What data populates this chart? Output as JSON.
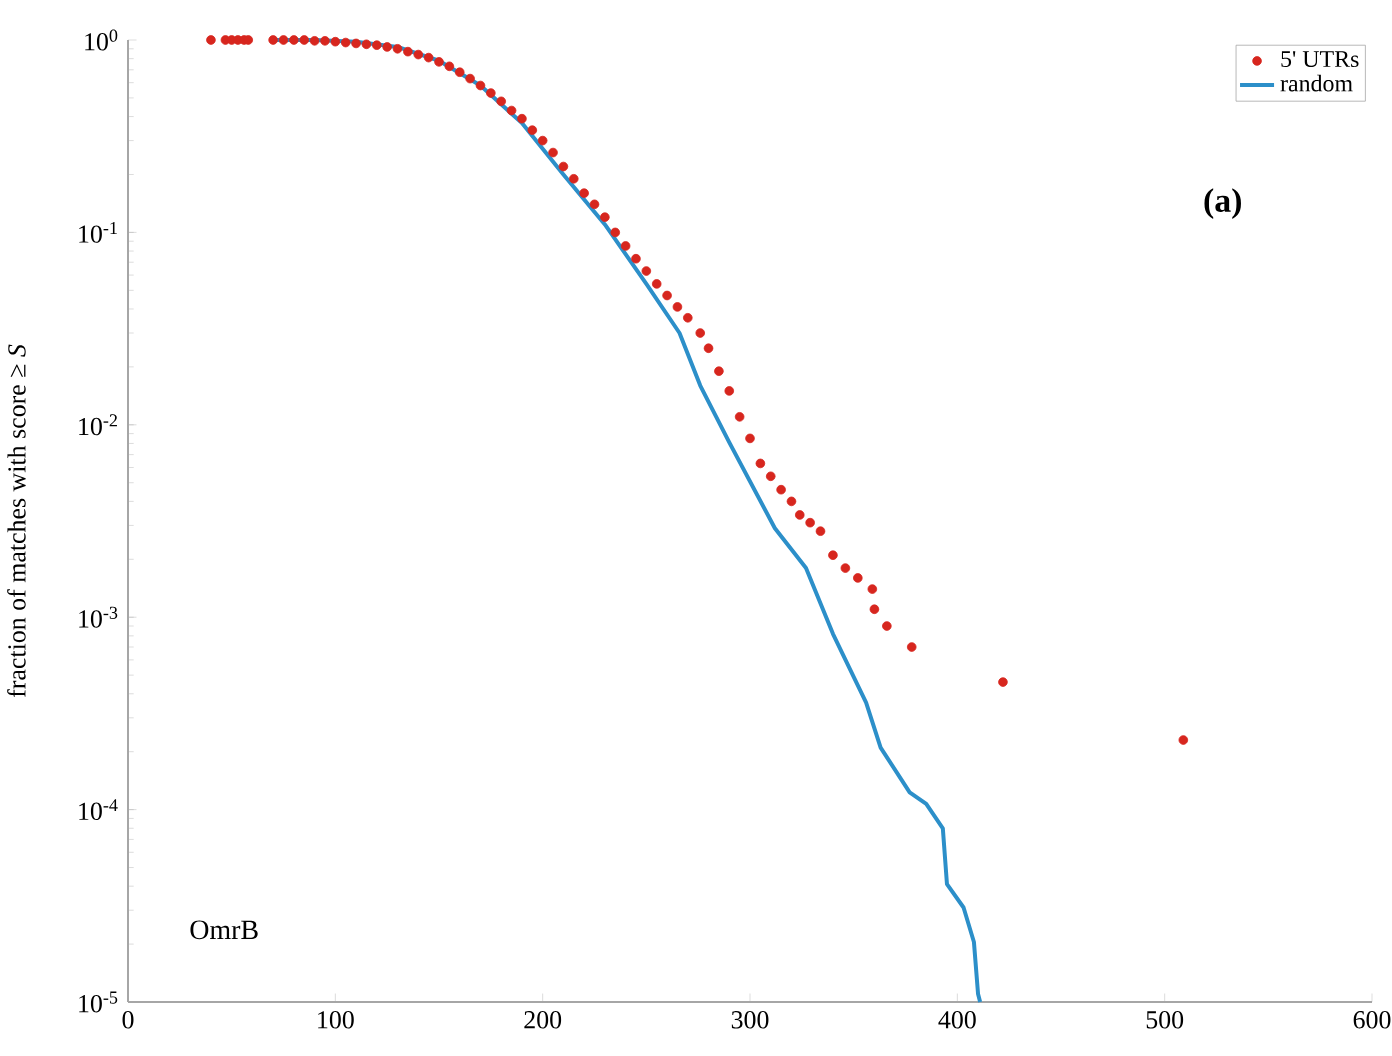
{
  "chart_data": {
    "type": "scatter",
    "ylabel": "fraction of matches with score ≥ *S*",
    "log": "y",
    "legend": "top right",
    "xlim": [
      0,
      600
    ],
    "ylim": [
      1e-05,
      1
    ],
    "xticks": [
      0,
      100,
      200,
      300,
      400,
      500,
      600
    ],
    "yticks": [
      {
        "value": 1e-05,
        "label": "10$^{-5}$"
      },
      {
        "value": 0.0001,
        "label": "10$^{-4}$"
      },
      {
        "value": 0.001,
        "label": "10$^{-3}$"
      },
      {
        "value": 0.01,
        "label": "10$^{-2}$"
      },
      {
        "value": 0.1,
        "label": "10$^{-1}$"
      },
      {
        "value": 1,
        "label": "10$^{0}$"
      }
    ],
    "annotations": [
      "(a)",
      "OmrB"
    ],
    "series": [
      {
        "name": "5' UTRs",
        "marker": "circle",
        "color": "#d7261e",
        "x": [
          40,
          47,
          50,
          53,
          56,
          58,
          70,
          75,
          80,
          85,
          90,
          95,
          100,
          105,
          110,
          115,
          120,
          125,
          130,
          135,
          140,
          145,
          150,
          155,
          160,
          165,
          170,
          175,
          180,
          185,
          190,
          195,
          200,
          205,
          210,
          215,
          220,
          225,
          230,
          235,
          240,
          245,
          250,
          255,
          260,
          265,
          270,
          276,
          280,
          285,
          290,
          295,
          300,
          305,
          310,
          315,
          320,
          324,
          329,
          334,
          340,
          346,
          352,
          359,
          360,
          366,
          378,
          422,
          509
        ],
        "values": [
          1,
          1,
          1,
          1,
          1,
          1,
          1,
          1,
          1,
          1,
          0.99,
          0.99,
          0.98,
          0.97,
          0.96,
          0.95,
          0.94,
          0.92,
          0.9,
          0.87,
          0.84,
          0.81,
          0.77,
          0.73,
          0.68,
          0.63,
          0.58,
          0.53,
          0.48,
          0.43,
          0.39,
          0.34,
          0.3,
          0.26,
          0.22,
          0.19,
          0.16,
          0.14,
          0.12,
          0.1,
          0.085,
          0.073,
          0.063,
          0.054,
          0.047,
          0.041,
          0.036,
          0.03,
          0.025,
          0.019,
          0.015,
          0.011,
          0.0085,
          0.0063,
          0.0054,
          0.0046,
          0.004,
          0.0034,
          0.0031,
          0.0028,
          0.0021,
          0.0018,
          0.0016,
          0.0014,
          0.0011,
          0.0009,
          0.0007,
          0.00046,
          0.00023
        ]
      },
      {
        "name": "random",
        "type": "line",
        "marker": "none",
        "line_style": "solid",
        "color": "#2c8fc9",
        "x": [
          70,
          90,
          110,
          130,
          150,
          170,
          190,
          210,
          230,
          250,
          266,
          276,
          290,
          312,
          327,
          340,
          356,
          363,
          377,
          385,
          393,
          395,
          403,
          408,
          410,
          411
        ],
        "values": [
          1,
          1,
          0.98,
          0.92,
          0.78,
          0.58,
          0.37,
          0.2,
          0.11,
          0.054,
          0.03,
          0.016,
          0.0081,
          0.0029,
          0.0018,
          0.00082,
          0.00036,
          0.00021,
          0.000123,
          0.000107,
          8e-05,
          4.1e-05,
          3.1e-05,
          2.05e-05,
          1.1e-05,
          1e-05
        ]
      }
    ]
  }
}
